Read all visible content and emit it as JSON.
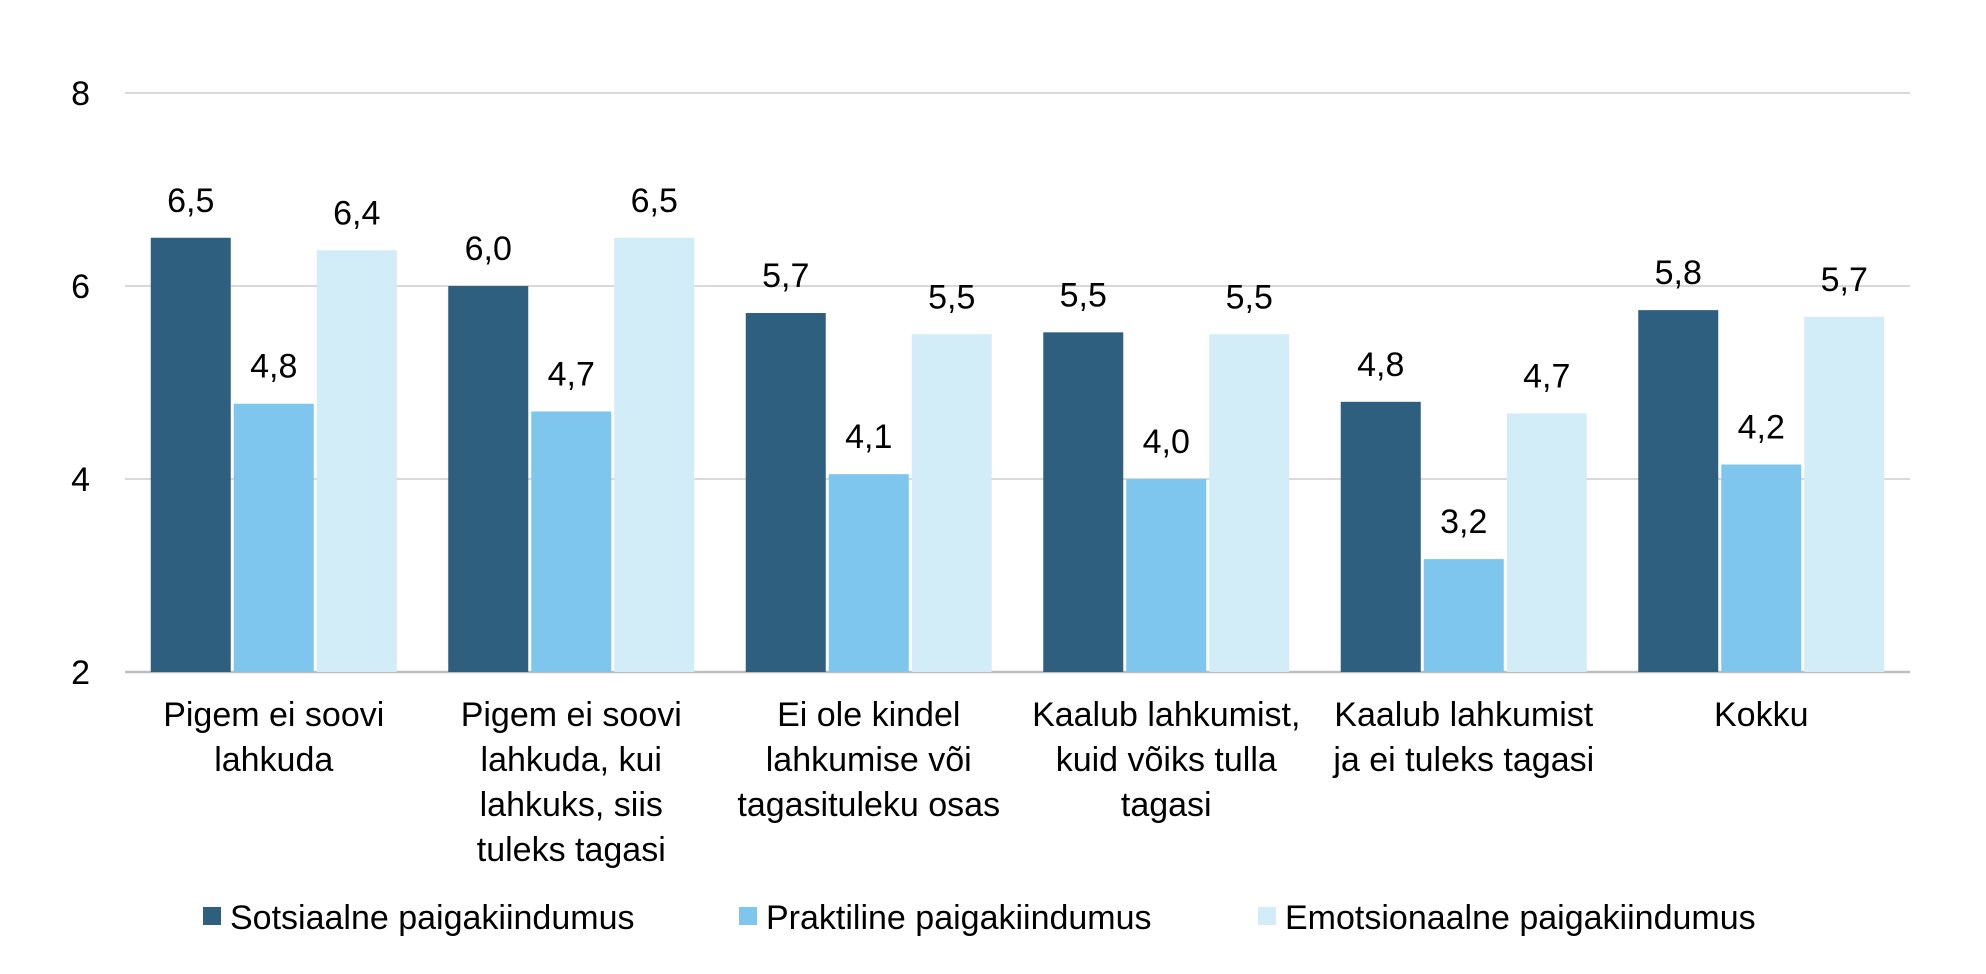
{
  "chart_data": {
    "type": "bar",
    "title": "",
    "xlabel": "",
    "ylabel": "",
    "ylim": [
      2,
      8
    ],
    "yticks": [
      2,
      4,
      6,
      8
    ],
    "grid": true,
    "legend_position": "bottom",
    "categories": [
      [
        "Pigem ei soovi",
        "lahkuda"
      ],
      [
        "Pigem ei soovi",
        "lahkuda, kui",
        "lahkuks, siis",
        "tuleks tagasi"
      ],
      [
        "Ei ole kindel",
        "lahkumise või",
        "tagasituleku osas"
      ],
      [
        "Kaalub lahkumist,",
        "kuid võiks tulla",
        "tagasi"
      ],
      [
        "Kaalub lahkumist",
        "ja ei tuleks tagasi"
      ],
      [
        "Kokku"
      ]
    ],
    "series": [
      {
        "name": "Sotsiaalne paigakiindumus",
        "color": "#2e5f7f",
        "values": [
          6.5,
          6.0,
          5.72,
          5.52,
          4.8,
          5.75
        ],
        "labels": [
          "6,5",
          "6,0",
          "5,7",
          "5,5",
          "4,8",
          "5,8"
        ]
      },
      {
        "name": "Praktiline paigakiindumus",
        "color": "#7fc6ef",
        "values": [
          4.78,
          4.7,
          4.05,
          4.0,
          3.17,
          4.15
        ],
        "labels": [
          "4,8",
          "4,7",
          "4,1",
          "4,0",
          "3,2",
          "4,2"
        ]
      },
      {
        "name": "Emotsionaalne paigakiindumus",
        "color": "#d2ecf8",
        "values": [
          6.37,
          6.5,
          5.5,
          5.5,
          4.68,
          5.68
        ],
        "labels": [
          "6,4",
          "6,5",
          "5,5",
          "5,5",
          "4,7",
          "5,7"
        ]
      }
    ]
  }
}
